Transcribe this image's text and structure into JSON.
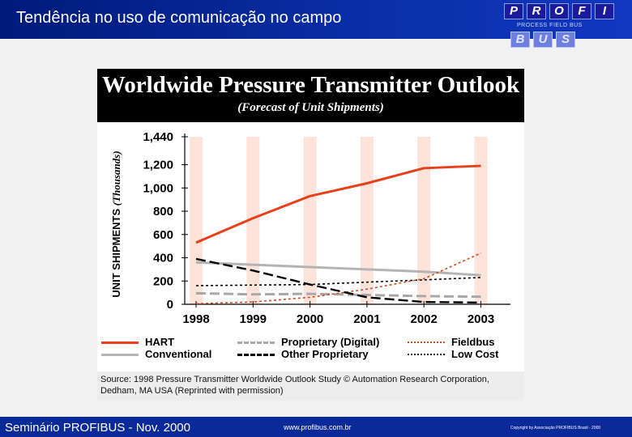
{
  "slide": {
    "title": "Tendência no uso de comunicação no campo",
    "footer_left": "Seminário PROFIBUS - Nov. 2000",
    "footer_mid": "www.profibus.com.br",
    "footer_right": "Copyright by Associação PROFIBUS Brasil - 2000"
  },
  "logo": {
    "row1": [
      "P",
      "R",
      "O",
      "F",
      "I"
    ],
    "sub": "PROCESS FIELD BUS",
    "row2": [
      "B",
      "U",
      "S"
    ]
  },
  "colors": {
    "header_bar": "#0a2fa8",
    "hart": "#e8401c",
    "conventional": "#b4b4b4",
    "proprietary_digital": "#a8a8a8",
    "fieldbus": "#d04a1e",
    "other_proprietary": "#000000",
    "low_cost": "#000000",
    "year_band": "#fde3da"
  },
  "chart_data": {
    "type": "line",
    "title": "Worldwide Pressure Transmitter Outlook",
    "subtitle": "(Forecast of Unit Shipments)",
    "ylabel": "UNIT SHIPMENTS",
    "ylabel_unit": "(Thousands)",
    "xlabel": "",
    "x": [
      "1998",
      "1999",
      "2000",
      "2001",
      "2002",
      "2003"
    ],
    "ylim": [
      0,
      1440
    ],
    "yticks": [
      "1,440",
      "1,200",
      "1,000",
      "800",
      "600",
      "400",
      "200",
      "0"
    ],
    "ytick_values": [
      1440,
      1200,
      1000,
      800,
      600,
      400,
      200,
      0
    ],
    "series": [
      {
        "name": "HART",
        "style": "solid",
        "color_key": "hart",
        "values": [
          530,
          740,
          930,
          1040,
          1170,
          1190
        ]
      },
      {
        "name": "Proprietary (Digital)",
        "style": "dashed",
        "color_key": "proprietary_digital",
        "values": [
          95,
          85,
          90,
          80,
          70,
          65
        ]
      },
      {
        "name": "Fieldbus",
        "style": "dotted",
        "color_key": "fieldbus",
        "values": [
          5,
          20,
          60,
          130,
          220,
          440
        ]
      },
      {
        "name": "Conventional",
        "style": "solid",
        "color_key": "conventional",
        "values": [
          360,
          340,
          320,
          300,
          280,
          250
        ]
      },
      {
        "name": "Other Proprietary",
        "style": "dashed",
        "color_key": "other_proprietary",
        "values": [
          390,
          290,
          170,
          60,
          20,
          15
        ]
      },
      {
        "name": "Low Cost",
        "style": "dotted",
        "color_key": "low_cost",
        "values": [
          160,
          165,
          170,
          190,
          210,
          230
        ]
      }
    ],
    "legend_order": [
      [
        "HART",
        "Proprietary (Digital)",
        "Fieldbus"
      ],
      [
        "Conventional",
        "Other Proprietary",
        "Low Cost"
      ]
    ],
    "legend_position": "bottom",
    "grid": false
  },
  "source": "Source: 1998 Pressure Transmitter Worldwide Outlook Study © Automation Research Corporation, Dedham, MA USA (Reprinted with permission)"
}
